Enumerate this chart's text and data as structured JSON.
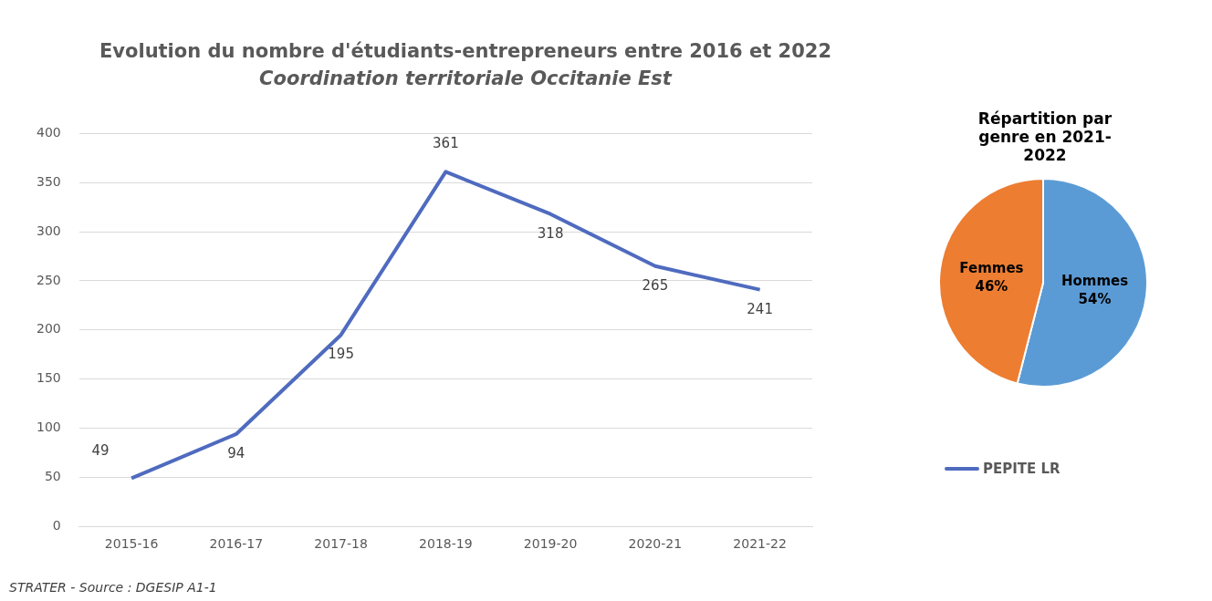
{
  "chart_data": [
    {
      "type": "line",
      "title": "Evolution du nombre d'étudiants-entrepreneurs  entre 2016 et 2022",
      "subtitle": "Coordination territoriale Occitanie Est",
      "categories": [
        "2015-16",
        "2016-17",
        "2017-18",
        "2018-19",
        "2019-20",
        "2020-21",
        "2021-22"
      ],
      "series": [
        {
          "name": "PEPITE LR",
          "color": "#4f6bbf",
          "values": [
            49,
            94,
            195,
            361,
            318,
            265,
            241
          ]
        }
      ],
      "ylim": [
        0,
        400
      ],
      "yticks": [
        0,
        50,
        100,
        150,
        200,
        250,
        300,
        350,
        400
      ],
      "grid": "y",
      "legend": "right",
      "marker": "none",
      "data_labels": true,
      "annotations": [
        "STRATER - Source : DGESIP A1-1"
      ]
    },
    {
      "type": "pie",
      "title": "Répartition par genre en 2021-2022",
      "categories": [
        "Hommes",
        "Femmes"
      ],
      "values": [
        54,
        46
      ],
      "colors": [
        "#5b9bd5",
        "#ed7d31"
      ],
      "value_labels": [
        "54%",
        "46%"
      ]
    }
  ]
}
